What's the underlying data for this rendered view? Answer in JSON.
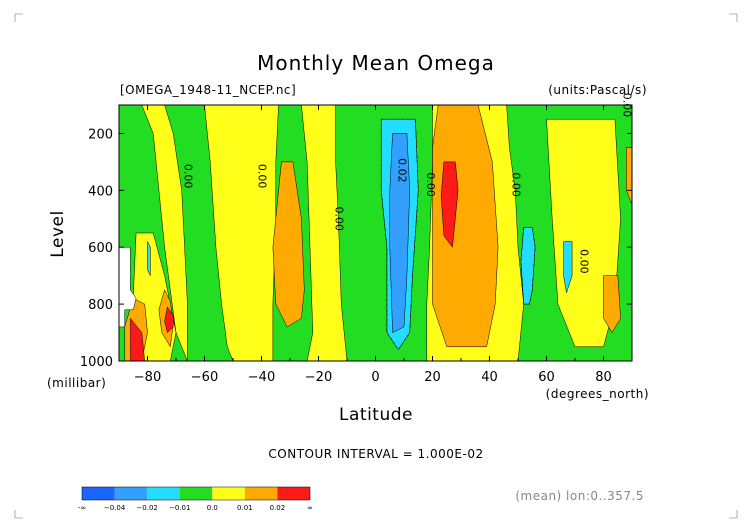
{
  "chart_data": {
    "type": "heatmap",
    "title": "Monthly Mean Omega",
    "file_label": "[OMEGA_1948-11_NCEP.nc]",
    "units_label": "(units:Pascal/s)",
    "xlabel": "Latitude",
    "x_units": "(degrees_north)",
    "ylabel": "Level",
    "y_units": "(millibar)",
    "xlim": [
      -90,
      90
    ],
    "ylim": [
      1000,
      100
    ],
    "x_ticks": [
      "-80",
      "-60",
      "-40",
      "-20",
      "0",
      "20",
      "40",
      "60",
      "80"
    ],
    "x_tick_values": [
      -80,
      -60,
      -40,
      -20,
      0,
      20,
      40,
      60,
      80
    ],
    "y_ticks": [
      "200",
      "400",
      "600",
      "800",
      "1000"
    ],
    "y_tick_values": [
      200,
      400,
      600,
      800,
      1000
    ],
    "contour_interval_text": "CONTOUR INTERVAL = 1.000E-02",
    "footer_note": "(mean) lon:0..357.5",
    "colorbar": {
      "colors": [
        "#1a66ff",
        "#33a0ff",
        "#22ddff",
        "#22dd22",
        "#ffff1a",
        "#ffaa00",
        "#ff1a1a"
      ],
      "labels": [
        "-∞",
        "−0.04",
        "−0.02",
        "−0.01",
        "0.0",
        "0.01",
        "0.02",
        "∞"
      ]
    },
    "contour_labels": [
      {
        "text": "0.00",
        "lat": -67,
        "lev": 350
      },
      {
        "text": "0.00",
        "lat": -41,
        "lev": 350
      },
      {
        "text": "0.00",
        "lat": -14,
        "lev": 500
      },
      {
        "text": "0.02",
        "lat": 8,
        "lev": 330
      },
      {
        "text": "0.00",
        "lat": 18,
        "lev": 380
      },
      {
        "text": "0.00",
        "lat": 48,
        "lev": 380
      },
      {
        "text": "0.00",
        "lat": 72,
        "lev": 650
      },
      {
        "text": "0.00",
        "lat": 87,
        "lev": 100
      }
    ],
    "regions": [
      {
        "color": "#ffff1a",
        "points": [
          [
            -90,
            1000
          ],
          [
            -90,
            100
          ],
          [
            90,
            100
          ],
          [
            90,
            1000
          ]
        ]
      },
      {
        "color": "#22dd22",
        "points": [
          [
            -90,
            1000
          ],
          [
            -90,
            100
          ],
          [
            -82,
            100
          ],
          [
            -78,
            200
          ],
          [
            -76,
            400
          ],
          [
            -74,
            600
          ],
          [
            -72,
            750
          ],
          [
            -70,
            900
          ],
          [
            -66,
            1000
          ]
        ]
      },
      {
        "color": "#22dd22",
        "points": [
          [
            -74,
            100
          ],
          [
            -60,
            100
          ],
          [
            -58,
            300
          ],
          [
            -56,
            600
          ],
          [
            -54,
            800
          ],
          [
            -52,
            950
          ],
          [
            -50,
            1000
          ],
          [
            -66,
            1000
          ],
          [
            -66,
            800
          ],
          [
            -67,
            600
          ],
          [
            -68,
            400
          ],
          [
            -71,
            200
          ]
        ]
      },
      {
        "color": "#22dd22",
        "points": [
          [
            -34,
            100
          ],
          [
            -26,
            100
          ],
          [
            -24,
            300
          ],
          [
            -23,
            600
          ],
          [
            -22,
            900
          ],
          [
            -24,
            1000
          ],
          [
            -36,
            1000
          ],
          [
            -36,
            800
          ],
          [
            -35,
            500
          ],
          [
            -35,
            300
          ]
        ]
      },
      {
        "color": "#22dd22",
        "points": [
          [
            -14,
            100
          ],
          [
            20,
            100
          ],
          [
            20,
            300
          ],
          [
            19,
            600
          ],
          [
            18,
            800
          ],
          [
            18,
            1000
          ],
          [
            -10,
            1000
          ],
          [
            -12,
            800
          ],
          [
            -13,
            500
          ],
          [
            -14,
            300
          ]
        ]
      },
      {
        "color": "#22dd22",
        "points": [
          [
            46,
            100
          ],
          [
            90,
            100
          ],
          [
            90,
            1000
          ],
          [
            50,
            1000
          ],
          [
            52,
            800
          ],
          [
            50,
            600
          ],
          [
            49,
            400
          ],
          [
            47,
            250
          ]
        ]
      },
      {
        "color": "#ffff1a",
        "points": [
          [
            60,
            150
          ],
          [
            84,
            150
          ],
          [
            86,
            500
          ],
          [
            84,
            800
          ],
          [
            80,
            950
          ],
          [
            70,
            950
          ],
          [
            64,
            800
          ],
          [
            62,
            500
          ]
        ]
      },
      {
        "color": "#ffff1a",
        "points": [
          [
            -84,
            550
          ],
          [
            -78,
            550
          ],
          [
            -74,
            700
          ],
          [
            -70,
            900
          ],
          [
            -72,
            1000
          ],
          [
            -86,
            1000
          ]
        ]
      },
      {
        "color": "#ffaa00",
        "points": [
          [
            -85,
            780
          ],
          [
            -81,
            800
          ],
          [
            -80,
            900
          ],
          [
            -82,
            1000
          ],
          [
            -88,
            1000
          ],
          [
            -88,
            880
          ]
        ]
      },
      {
        "color": "#ffaa00",
        "points": [
          [
            -74,
            750
          ],
          [
            -72,
            790
          ],
          [
            -71,
            870
          ],
          [
            -72,
            950
          ],
          [
            -75,
            900
          ],
          [
            -76,
            820
          ]
        ]
      },
      {
        "color": "#ffaa00",
        "points": [
          [
            -33,
            300
          ],
          [
            -29,
            300
          ],
          [
            -26,
            500
          ],
          [
            -25,
            750
          ],
          [
            -26,
            850
          ],
          [
            -31,
            880
          ],
          [
            -35,
            800
          ],
          [
            -36,
            600
          ]
        ]
      },
      {
        "color": "#ffaa00",
        "points": [
          [
            22,
            100
          ],
          [
            36,
            100
          ],
          [
            41,
            300
          ],
          [
            43,
            600
          ],
          [
            42,
            800
          ],
          [
            39,
            950
          ],
          [
            25,
            950
          ],
          [
            20,
            800
          ],
          [
            20,
            500
          ],
          [
            20,
            250
          ]
        ]
      },
      {
        "color": "#ffaa00",
        "points": [
          [
            80,
            700
          ],
          [
            85,
            700
          ],
          [
            86,
            850
          ],
          [
            83,
            900
          ],
          [
            80,
            850
          ]
        ]
      },
      {
        "color": "#ffaa00",
        "points": [
          [
            88,
            250
          ],
          [
            90,
            250
          ],
          [
            90,
            450
          ],
          [
            88,
            400
          ]
        ]
      },
      {
        "color": "#ff1a1a",
        "points": [
          [
            -86,
            850
          ],
          [
            -82,
            900
          ],
          [
            -81,
            1000
          ],
          [
            -86,
            1000
          ]
        ]
      },
      {
        "color": "#ff1a1a",
        "points": [
          [
            -73,
            810
          ],
          [
            -71,
            840
          ],
          [
            -71,
            880
          ],
          [
            -73,
            900
          ],
          [
            -74,
            860
          ]
        ]
      },
      {
        "color": "#ff1a1a",
        "points": [
          [
            24,
            300
          ],
          [
            28,
            300
          ],
          [
            29,
            400
          ],
          [
            28,
            500
          ],
          [
            27,
            600
          ],
          [
            24,
            560
          ],
          [
            23,
            420
          ]
        ]
      },
      {
        "color": "#22ddff",
        "points": [
          [
            2,
            150
          ],
          [
            14,
            150
          ],
          [
            15,
            400
          ],
          [
            13,
            700
          ],
          [
            12,
            900
          ],
          [
            8,
            960
          ],
          [
            4,
            900
          ],
          [
            4,
            600
          ],
          [
            2,
            400
          ]
        ]
      },
      {
        "color": "#33a0ff",
        "points": [
          [
            6,
            200
          ],
          [
            11,
            200
          ],
          [
            12,
            400
          ],
          [
            11,
            700
          ],
          [
            10,
            880
          ],
          [
            6,
            900
          ],
          [
            5,
            600
          ],
          [
            5,
            400
          ]
        ]
      },
      {
        "color": "#22ddff",
        "points": [
          [
            52,
            530
          ],
          [
            55,
            530
          ],
          [
            56,
            600
          ],
          [
            55,
            750
          ],
          [
            54,
            800
          ],
          [
            52,
            800
          ],
          [
            51,
            650
          ]
        ]
      },
      {
        "color": "#22ddff",
        "points": [
          [
            66,
            580
          ],
          [
            69,
            580
          ],
          [
            69,
            700
          ],
          [
            67,
            760
          ],
          [
            66,
            700
          ]
        ]
      },
      {
        "color": "#22ddff",
        "points": [
          [
            -80,
            580
          ],
          [
            -79,
            600
          ],
          [
            -79,
            700
          ],
          [
            -80,
            680
          ]
        ]
      },
      {
        "color": "#ffffff",
        "points": [
          [
            -90,
            600
          ],
          [
            -86,
            600
          ],
          [
            -86,
            750
          ],
          [
            -84,
            780
          ],
          [
            -85,
            820
          ],
          [
            -88,
            820
          ],
          [
            -88,
            880
          ],
          [
            -90,
            880
          ]
        ]
      }
    ],
    "dashed_contours": [
      [
        [
          2,
          150
        ],
        [
          14,
          150
        ],
        [
          15,
          400
        ],
        [
          13,
          700
        ],
        [
          12,
          900
        ],
        [
          8,
          960
        ],
        [
          4,
          900
        ],
        [
          4,
          600
        ],
        [
          2,
          400
        ],
        [
          2,
          150
        ]
      ],
      [
        [
          52,
          530
        ],
        [
          55,
          530
        ],
        [
          56,
          600
        ],
        [
          55,
          750
        ],
        [
          54,
          800
        ],
        [
          52,
          800
        ],
        [
          51,
          650
        ],
        [
          52,
          530
        ]
      ]
    ]
  }
}
